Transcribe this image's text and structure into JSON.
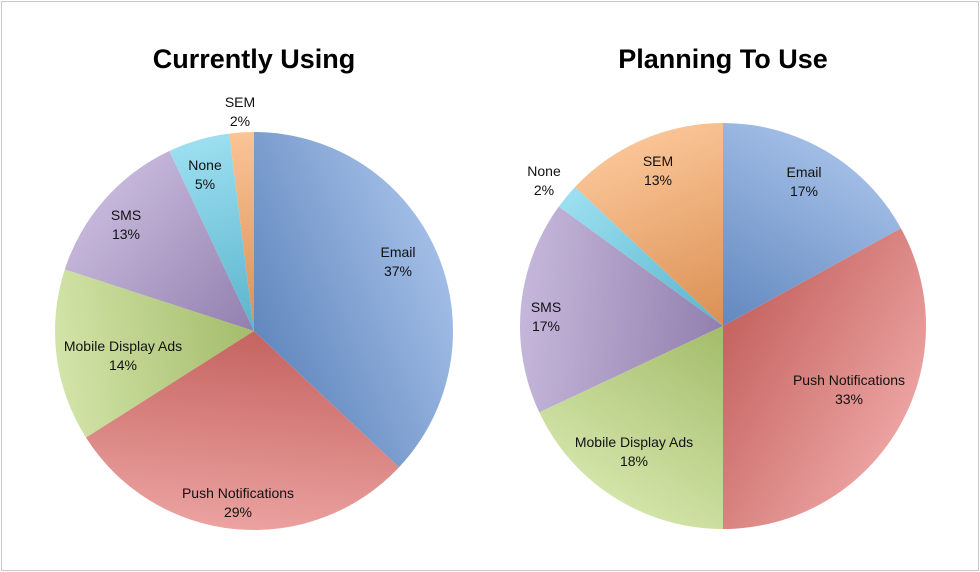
{
  "chart_data": [
    {
      "type": "pie",
      "title": "Currently Using",
      "slices": [
        {
          "label": "Email",
          "value": 37,
          "value_label": "37%",
          "color": "#6f9ad8"
        },
        {
          "label": "Push Notifications",
          "value": 29,
          "value_label": "29%",
          "color": "#e0706d"
        },
        {
          "label": "Mobile Display Ads",
          "value": 14,
          "value_label": "14%",
          "color": "#b9d679"
        },
        {
          "label": "SMS",
          "value": 13,
          "value_label": "13%",
          "color": "#a690c6"
        },
        {
          "label": "None",
          "value": 5,
          "value_label": "5%",
          "color": "#66cde8"
        },
        {
          "label": "SEM",
          "value": 2,
          "value_label": "2%",
          "color": "#f8a45e"
        }
      ]
    },
    {
      "type": "pie",
      "title": "Planning To Use",
      "slices": [
        {
          "label": "Email",
          "value": 17,
          "value_label": "17%",
          "color": "#6f9ad8"
        },
        {
          "label": "Push Notifications",
          "value": 33,
          "value_label": "33%",
          "color": "#e0706d"
        },
        {
          "label": "Mobile Display Ads",
          "value": 18,
          "value_label": "18%",
          "color": "#b9d679"
        },
        {
          "label": "SMS",
          "value": 17,
          "value_label": "17%",
          "color": "#a690c6"
        },
        {
          "label": "None",
          "value": 2,
          "value_label": "2%",
          "color": "#66cde8"
        },
        {
          "label": "SEM",
          "value": 13,
          "value_label": "13%",
          "color": "#f8a45e"
        }
      ]
    }
  ]
}
